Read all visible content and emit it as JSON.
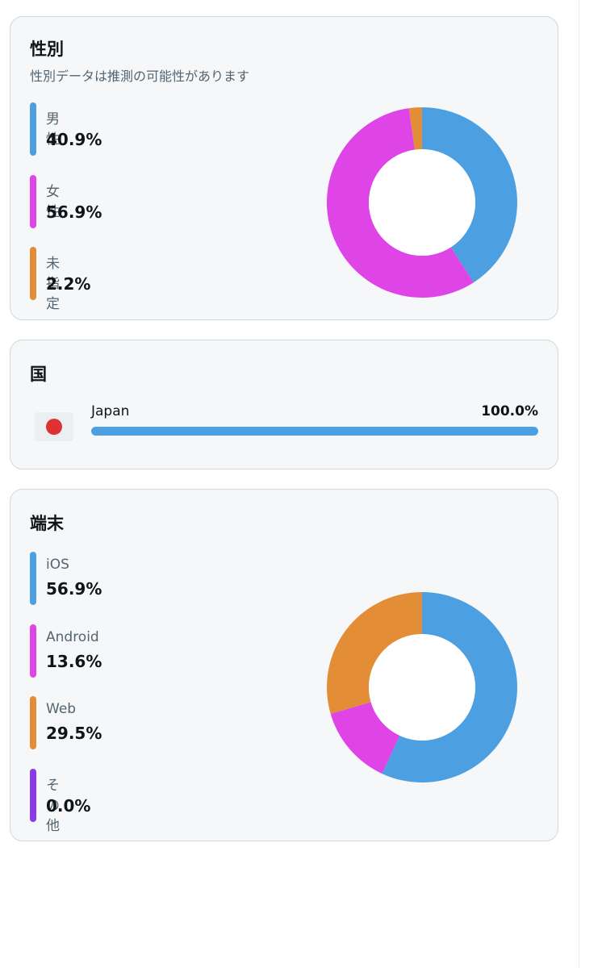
{
  "gender": {
    "title": "性別",
    "subtitle": "性別データは推測の可能性があります",
    "chart_data": {
      "type": "pie",
      "categories": [
        "男性",
        "女性",
        "未指定"
      ],
      "values": [
        40.9,
        56.9,
        2.2
      ],
      "value_labels": [
        "40.9%",
        "56.9%",
        "2.2%"
      ],
      "colors": [
        "#4c9fe0",
        "#df44e6",
        "#e38d36"
      ],
      "legend": "left"
    }
  },
  "country": {
    "title": "国",
    "items": [
      {
        "name": "Japan",
        "percent": 100.0,
        "percent_label": "100.0%",
        "flag_icon": "japan-flag-icon",
        "bar_color": "#4c9fe0"
      }
    ]
  },
  "device": {
    "title": "端末",
    "chart_data": {
      "type": "pie",
      "categories": [
        "iOS",
        "Android",
        "Web",
        "その他"
      ],
      "values": [
        56.9,
        13.6,
        29.5,
        0.0
      ],
      "value_labels": [
        "56.9%",
        "13.6%",
        "29.5%",
        "0.0%"
      ],
      "colors": [
        "#4c9fe0",
        "#df44e6",
        "#e38d36",
        "#8a3ae6"
      ],
      "legend": "left"
    }
  }
}
